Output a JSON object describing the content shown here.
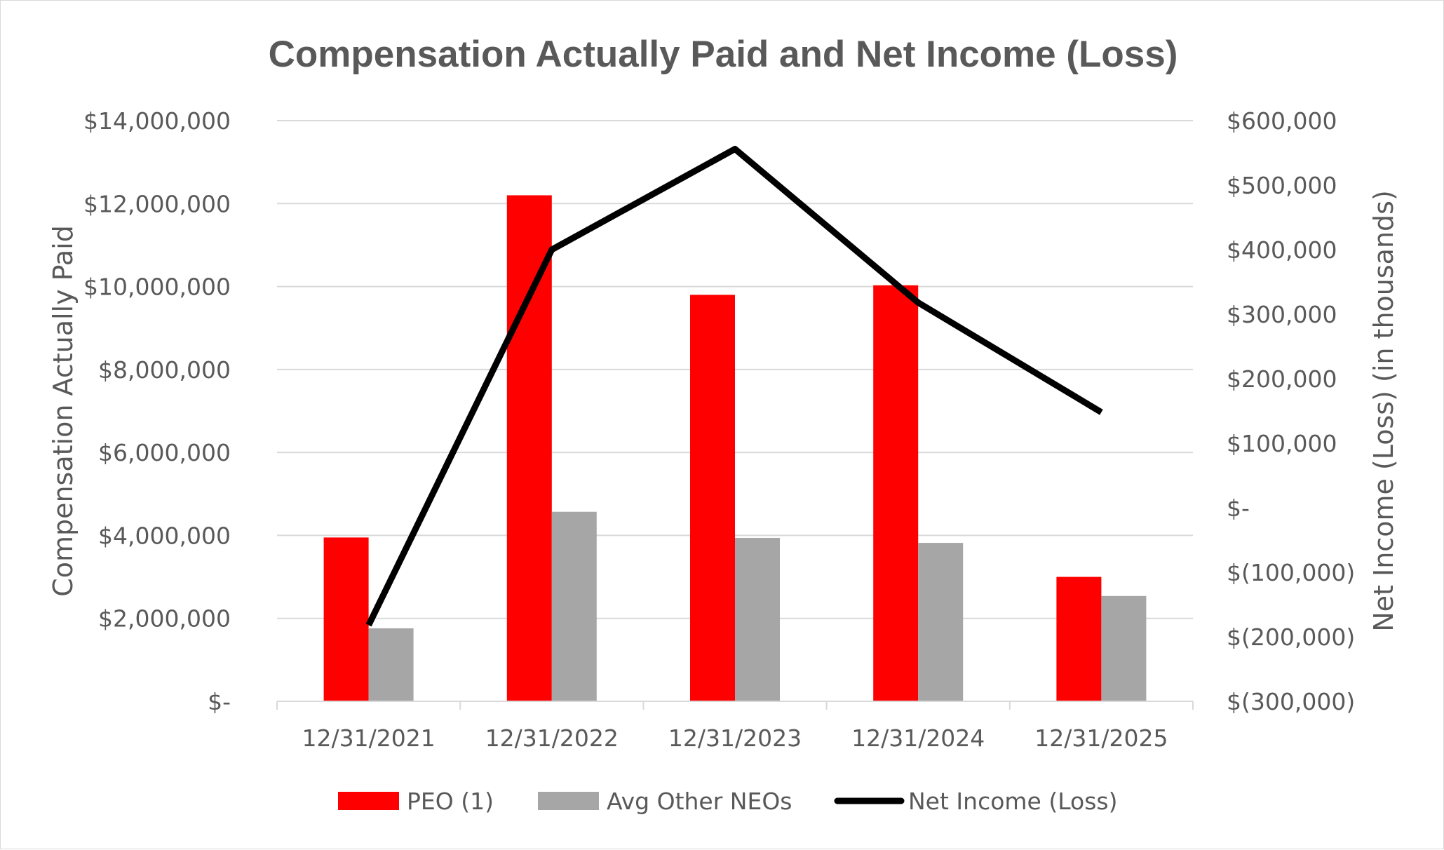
{
  "chart_data": {
    "type": "bar",
    "title": "Compensation Actually Paid and Net Income (Loss)",
    "ylabel": "Compensation Actually Paid",
    "y2label": "Net Income (Loss) (in thousands)",
    "categories": [
      "12/31/2021",
      "12/31/2022",
      "12/31/2023",
      "12/31/2024",
      "12/31/2025"
    ],
    "ylim": [
      0,
      14000000
    ],
    "y2lim": [
      -300000,
      600000
    ],
    "yticks": [
      0,
      2000000,
      4000000,
      6000000,
      8000000,
      10000000,
      12000000,
      14000000
    ],
    "ytick_labels": [
      "$-",
      "$2,000,000",
      "$4,000,000",
      "$6,000,000",
      "$8,000,000",
      "$10,000,000",
      "$12,000,000",
      "$14,000,000"
    ],
    "y2ticks": [
      -300000,
      -200000,
      -100000,
      0,
      100000,
      200000,
      300000,
      400000,
      500000,
      600000
    ],
    "y2tick_labels": [
      "$(300,000)",
      "$(200,000)",
      "$(100,000)",
      "$-",
      "$100,000",
      "$200,000",
      "$300,000",
      "$400,000",
      "$500,000",
      "$600,000"
    ],
    "grid": true,
    "legend_position": "bottom",
    "series": [
      {
        "name": "PEO (1)",
        "type": "bar",
        "axis": "left",
        "color": "#ff0000",
        "values": [
          3950000,
          12200000,
          9800000,
          10030000,
          3000000
        ]
      },
      {
        "name": "Avg Other NEOs",
        "type": "bar",
        "axis": "left",
        "color": "#a6a6a6",
        "values": [
          1760000,
          4570000,
          3940000,
          3820000,
          2540000
        ]
      },
      {
        "name": "Net Income (Loss)",
        "type": "line",
        "axis": "right",
        "color": "#000000",
        "values": [
          -182000,
          400000,
          556000,
          318000,
          148000
        ]
      }
    ]
  }
}
